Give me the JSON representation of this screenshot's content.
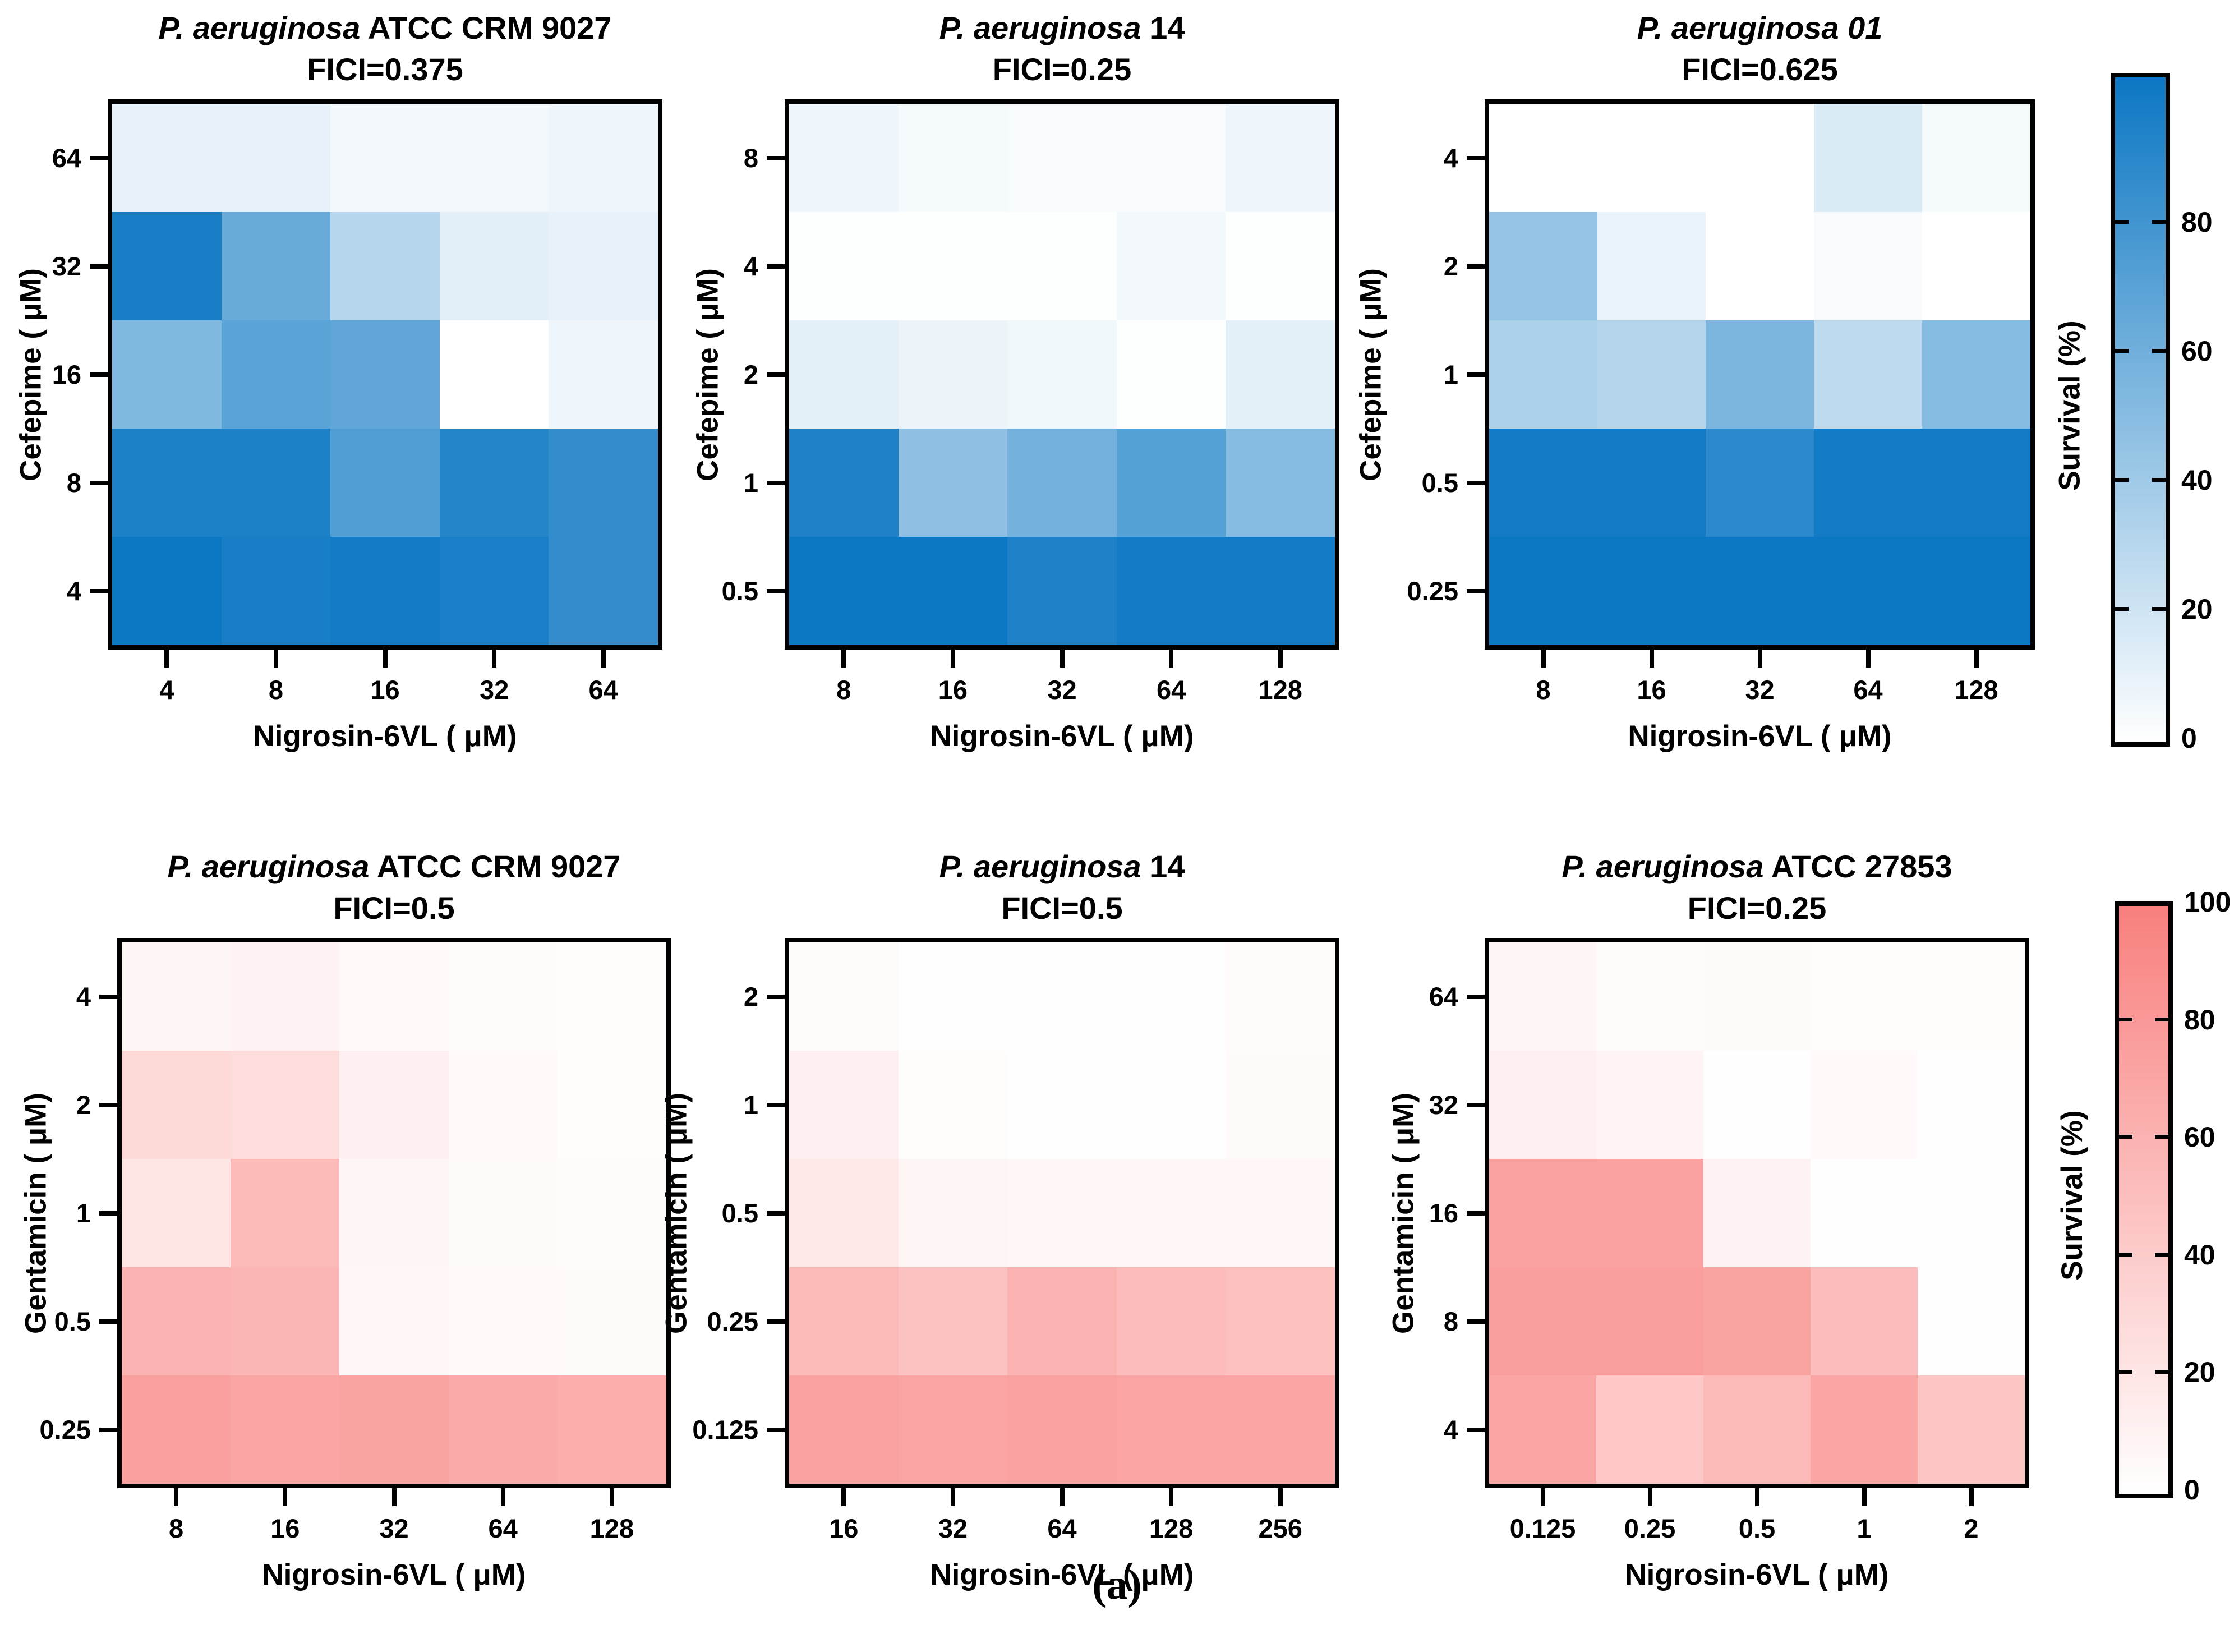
{
  "caption": "(a)",
  "colorbars": [
    {
      "id": "survival-blue",
      "label": "Survival (%)",
      "ticks": [
        0,
        20,
        40,
        60,
        80
      ],
      "scale_max": 103,
      "max_color": "#0c77c3",
      "min_color": "#ffffff"
    },
    {
      "id": "survival-red",
      "label": "Survival (%)",
      "ticks": [
        0,
        20,
        40,
        60,
        80,
        100
      ],
      "scale_max": 100,
      "max_color": "#f8807e",
      "min_color": "#ffffff"
    }
  ],
  "chart_data": [
    {
      "type": "heatmap",
      "palette": "blue",
      "title_italic": "P. aeruginosa",
      "title_roman": " ATCC CRM 9027",
      "fici": "FICI=0.375",
      "xlabel": "Nigrosin-6VL ( μM)",
      "ylabel": "Cefepime ( μM)",
      "x_ticks": [
        "4",
        "8",
        "16",
        "32",
        "64"
      ],
      "y_ticks": [
        "64",
        "32",
        "16",
        "8",
        "4"
      ],
      "legend": "Survival (%)",
      "survival_rows_top_to_bottom": [
        [
          10,
          10,
          5,
          5,
          7
        ],
        [
          95,
          62,
          30,
          12,
          10
        ],
        [
          52,
          68,
          66,
          0,
          7
        ],
        [
          93,
          93,
          72,
          90,
          84
        ],
        [
          100,
          95,
          97,
          94,
          84
        ]
      ]
    },
    {
      "type": "heatmap",
      "palette": "blue",
      "title_italic": "P. aeruginosa",
      "title_roman": " 14",
      "fici": "FICI=0.25",
      "xlabel": "Nigrosin-6VL ( μM)",
      "ylabel": "Cefepime ( μM)",
      "x_ticks": [
        "8",
        "16",
        "32",
        "64",
        "128"
      ],
      "y_ticks": [
        "8",
        "4",
        "2",
        "1",
        "0.5"
      ],
      "legend": "Survival (%)",
      "survival_rows_top_to_bottom": [
        [
          7,
          4,
          3,
          3,
          7
        ],
        [
          1,
          1,
          1,
          5,
          1
        ],
        [
          11,
          8,
          6,
          1,
          11
        ],
        [
          92,
          46,
          57,
          70,
          50
        ],
        [
          100,
          100,
          92,
          97,
          97
        ]
      ]
    },
    {
      "type": "heatmap",
      "palette": "blue",
      "title_italic": "P. aeruginosa 01",
      "title_roman": "",
      "fici": "FICI=0.625",
      "xlabel": "Nigrosin-6VL ( μM)",
      "ylabel": "Cefepime ( μM)",
      "x_ticks": [
        "8",
        "16",
        "32",
        "64",
        "128"
      ],
      "y_ticks": [
        "4",
        "2",
        "1",
        "0.5",
        "0.25"
      ],
      "legend": "Survival (%)",
      "survival_rows_top_to_bottom": [
        [
          0,
          0,
          0,
          15,
          4
        ],
        [
          44,
          9,
          0,
          3,
          0
        ],
        [
          34,
          31,
          54,
          27,
          50
        ],
        [
          97,
          97,
          87,
          97,
          97
        ],
        [
          100,
          100,
          100,
          100,
          100
        ]
      ]
    },
    {
      "type": "heatmap",
      "palette": "red",
      "title_italic": "P. aeruginosa",
      "title_roman": " ATCC CRM 9027",
      "fici": "FICI=0.5",
      "xlabel": "Nigrosin-6VL ( μM)",
      "ylabel": "Gentamicin ( μM)",
      "x_ticks": [
        "8",
        "16",
        "32",
        "64",
        "128"
      ],
      "y_ticks": [
        "4",
        "2",
        "1",
        "0.5",
        "0.25"
      ],
      "legend": "Survival (%)",
      "survival_rows_top_to_bottom": [
        [
          8,
          10,
          5,
          3,
          2
        ],
        [
          30,
          27,
          12,
          5,
          2
        ],
        [
          20,
          55,
          8,
          4,
          3
        ],
        [
          60,
          58,
          6,
          5,
          4
        ],
        [
          75,
          70,
          72,
          67,
          64
        ]
      ]
    },
    {
      "type": "heatmap",
      "palette": "red",
      "title_italic": "P. aeruginosa",
      "title_roman": " 14",
      "fici": "FICI=0.5",
      "xlabel": "Nigrosin-6VL ( μM)",
      "ylabel": "Gentamicin ( μM)",
      "x_ticks": [
        "16",
        "32",
        "64",
        "128",
        "256"
      ],
      "y_ticks": [
        "2",
        "1",
        "0.5",
        "0.25",
        "0.125"
      ],
      "legend": "Survival (%)",
      "survival_rows_top_to_bottom": [
        [
          3,
          1,
          1,
          1,
          3
        ],
        [
          12,
          2,
          1,
          1,
          4
        ],
        [
          18,
          8,
          7,
          7,
          7
        ],
        [
          55,
          48,
          60,
          53,
          50
        ],
        [
          73,
          71,
          73,
          71,
          71
        ]
      ]
    },
    {
      "type": "heatmap",
      "palette": "red",
      "title_italic": "P. aeruginosa",
      "title_roman": " ATCC 27853",
      "fici": "FICI=0.25",
      "xlabel": "Nigrosin-6VL ( μM)",
      "ylabel": "Gentamicin ( μM)",
      "x_ticks": [
        "0.125",
        "0.25",
        "0.5",
        "1",
        "2"
      ],
      "y_ticks": [
        "64",
        "32",
        "16",
        "8",
        "4"
      ],
      "legend": "Survival (%)",
      "survival_rows_top_to_bottom": [
        [
          8,
          3,
          4,
          2,
          2
        ],
        [
          12,
          9,
          1,
          5,
          1
        ],
        [
          73,
          73,
          10,
          1,
          1
        ],
        [
          76,
          76,
          72,
          52,
          1
        ],
        [
          70,
          44,
          55,
          70,
          45
        ]
      ]
    }
  ]
}
